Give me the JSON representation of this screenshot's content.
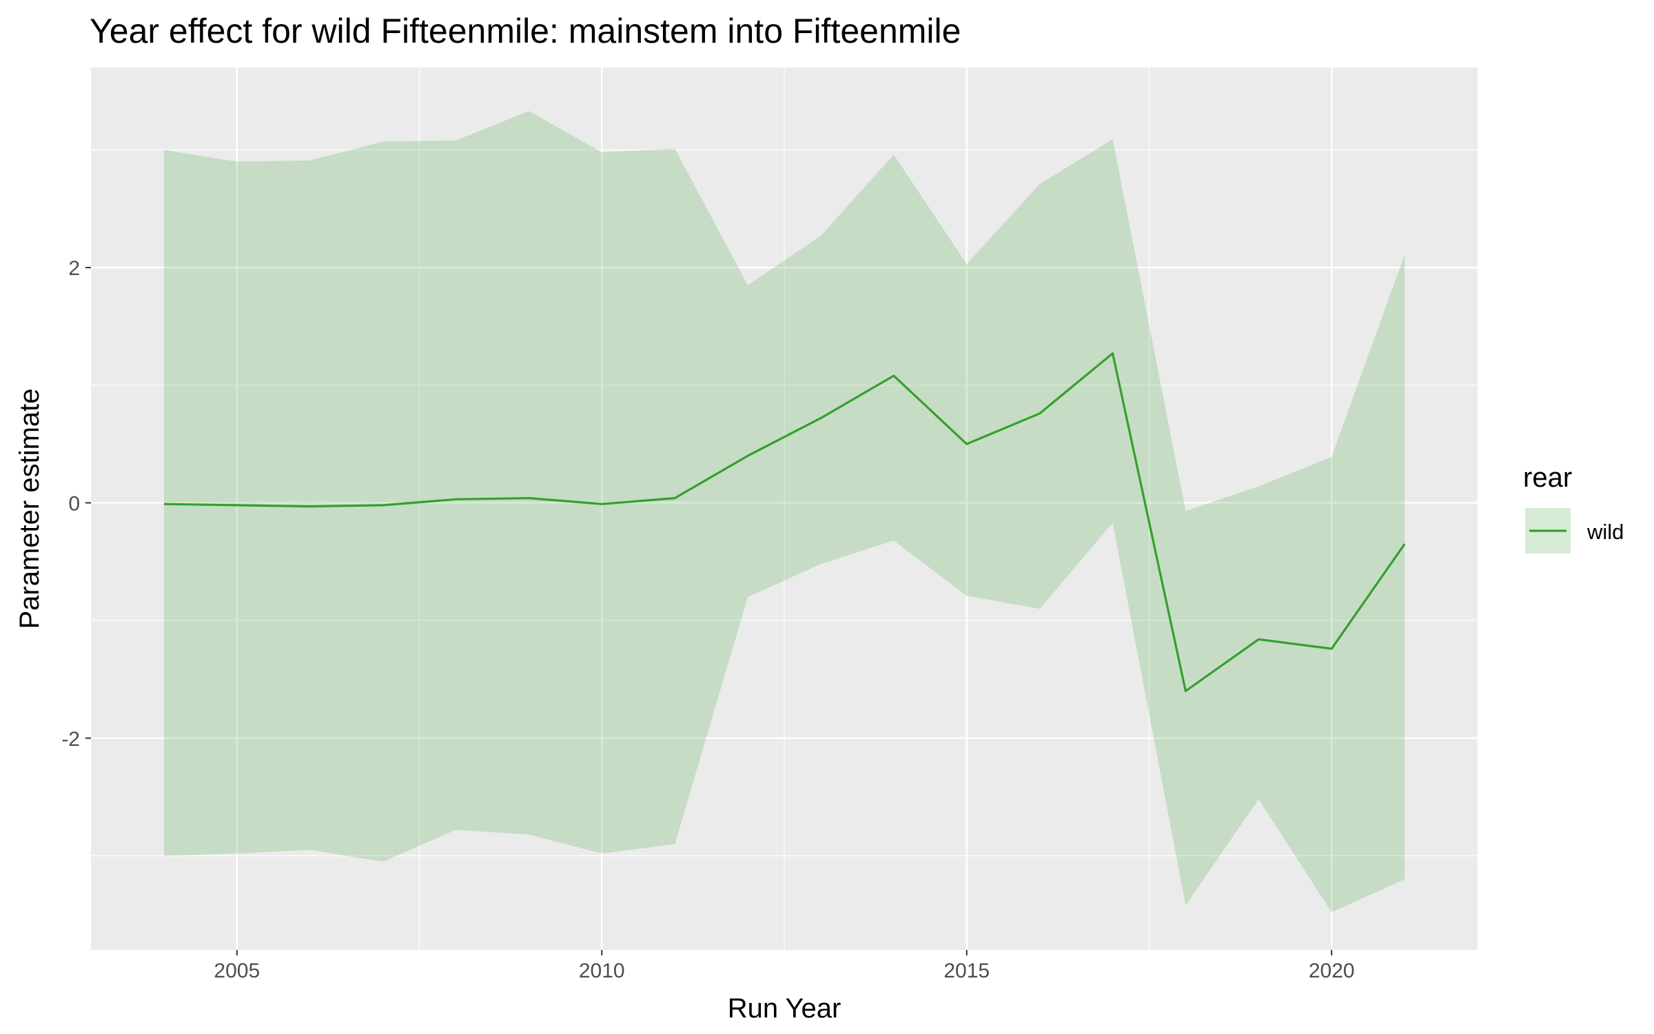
{
  "chart_data": {
    "type": "line",
    "title": "Year effect for wild Fifteenmile: mainstem into Fifteenmile",
    "xlabel": "Run Year",
    "ylabel": "Parameter estimate",
    "xlim": [
      2003,
      2022
    ],
    "ylim": [
      -3.8,
      3.7
    ],
    "x_ticks": [
      2005,
      2010,
      2015,
      2020
    ],
    "x_tick_labels": [
      "2005",
      "2010",
      "2015",
      "2020"
    ],
    "y_ticks": [
      -2,
      0,
      2
    ],
    "y_tick_labels": [
      "-2",
      "0",
      "2"
    ],
    "grid": true,
    "legend": {
      "title": "rear",
      "placement": "right",
      "entries": [
        "wild"
      ]
    },
    "colors": {
      "line": "#33a02c",
      "ribbon": "#b2dfb0",
      "panel": "#ebebeb",
      "grid": "#ffffff"
    },
    "series": [
      {
        "name": "wild",
        "x": [
          2004,
          2005,
          2006,
          2007,
          2008,
          2009,
          2010,
          2011,
          2012,
          2013,
          2014,
          2015,
          2016,
          2017,
          2018,
          2019,
          2020,
          2021
        ],
        "values": [
          -0.01,
          -0.02,
          -0.03,
          -0.02,
          0.03,
          0.04,
          -0.01,
          0.04,
          0.4,
          0.72,
          1.08,
          0.5,
          0.76,
          1.27,
          -1.6,
          -1.16,
          -1.24,
          -0.35
        ],
        "lower": [
          -3.0,
          -2.98,
          -2.95,
          -3.05,
          -2.78,
          -2.82,
          -2.98,
          -2.9,
          -0.8,
          -0.52,
          -0.32,
          -0.79,
          -0.9,
          -0.17,
          -3.42,
          -2.52,
          -3.48,
          -3.2
        ],
        "upper": [
          3.0,
          2.9,
          2.91,
          3.07,
          3.08,
          3.33,
          2.98,
          3.01,
          1.85,
          2.27,
          2.96,
          2.03,
          2.71,
          3.09,
          -0.07,
          0.14,
          0.39,
          2.11
        ]
      }
    ]
  }
}
